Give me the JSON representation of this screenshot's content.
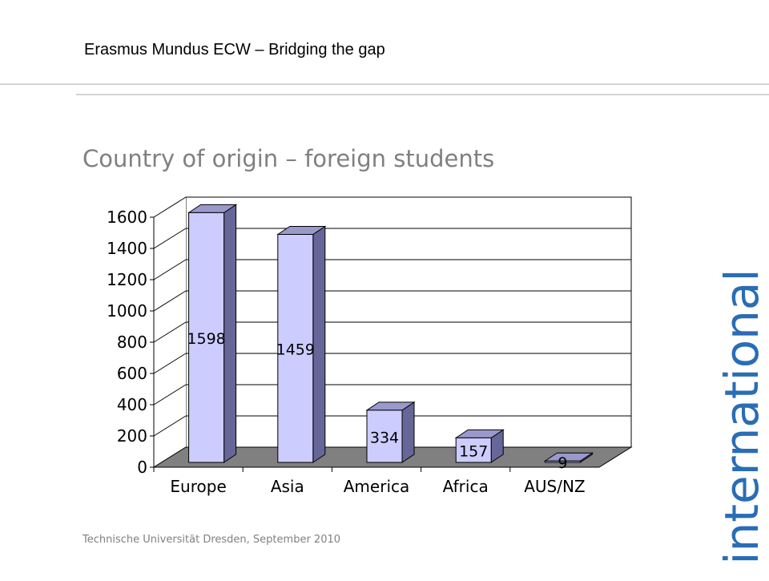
{
  "header": {
    "title": "Erasmus Mundus ECW – Bridging the gap"
  },
  "heading": "Country of origin – foreign students",
  "footer": "Technische Universität Dresden, September 2010",
  "side_text": "international",
  "chart_data": {
    "type": "bar",
    "categories": [
      "Europe",
      "Asia",
      "America",
      "Africa",
      "AUS/NZ"
    ],
    "values": [
      1598,
      1459,
      334,
      157,
      9
    ],
    "color": "#ccccff",
    "ylim": [
      0,
      1600
    ],
    "yticks": [
      0,
      200,
      400,
      600,
      800,
      1000,
      1200,
      1400,
      1600
    ],
    "grid": true
  }
}
